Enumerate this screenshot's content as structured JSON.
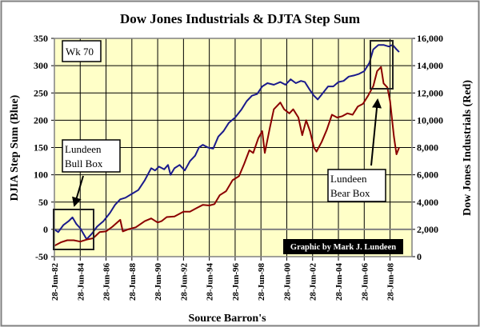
{
  "chart_data": {
    "type": "line",
    "title": "Dow Jones Industrials & DJTA Step Sum",
    "xlabel": "Source Barron's",
    "ylabel_left": "DJIA Step Sum (Blue)",
    "ylabel_right": "Dow Jones Industrials (Red)",
    "xlim": [
      1982.5,
      2010.2
    ],
    "ylim_left": [
      -50,
      350
    ],
    "ylim_right": [
      0,
      16000
    ],
    "grid": true,
    "x_ticks": [
      1982.5,
      1984.5,
      1986.5,
      1988.5,
      1990.5,
      1992.5,
      1994.5,
      1996.5,
      1998.5,
      2000.5,
      2002.5,
      2004.5,
      2006.5,
      2008.5
    ],
    "x_tick_labels": [
      "28-Jun-82",
      "28-Jun-84",
      "28-Jun-86",
      "28-Jun-88",
      "28-Jun-90",
      "28-Jun-92",
      "28-Jun-94",
      "28-Jun-96",
      "28-Jun-98",
      "28-Jun-00",
      "28-Jun-02",
      "28-Jun-04",
      "28-Jun-06",
      "28-Jun-08"
    ],
    "y_left_ticks": [
      -50,
      0,
      50,
      100,
      150,
      200,
      250,
      300,
      350
    ],
    "y_left_tick_labels": [
      "-50",
      "0",
      "50",
      "100",
      "150",
      "200",
      "250",
      "300",
      "350"
    ],
    "y_right_ticks": [
      0,
      2000,
      4000,
      6000,
      8000,
      10000,
      12000,
      14000,
      16000
    ],
    "y_right_tick_labels": [
      "0",
      "2,000",
      "4,000",
      "6,000",
      "8,000",
      "10,000",
      "12,000",
      "14,000",
      "16,000"
    ],
    "series": [
      {
        "name": "DJIA Step Sum",
        "axis": "left",
        "color": "#1a1a8c",
        "x": [
          1982.5,
          1982.8,
          1983.2,
          1983.6,
          1983.9,
          1984.2,
          1984.5,
          1984.8,
          1985.0,
          1985.4,
          1985.8,
          1986.3,
          1986.8,
          1987.2,
          1987.6,
          1988.0,
          1988.5,
          1989.0,
          1989.5,
          1990.0,
          1990.3,
          1990.6,
          1991.0,
          1991.3,
          1991.5,
          1991.8,
          1992.2,
          1992.6,
          1993.0,
          1993.4,
          1993.7,
          1994.0,
          1994.4,
          1994.8,
          1995.2,
          1995.6,
          1996.0,
          1996.5,
          1997.0,
          1997.4,
          1997.8,
          1998.2,
          1998.6,
          1999.0,
          1999.5,
          2000.0,
          2000.4,
          2000.8,
          2001.2,
          2001.6,
          2001.9,
          2002.3,
          2002.6,
          2002.9,
          2003.3,
          2003.7,
          2004.1,
          2004.5,
          2004.9,
          2005.3,
          2005.7,
          2006.1,
          2006.5,
          2006.9,
          2007.2,
          2007.6,
          2008.0,
          2008.4,
          2008.7,
          2009.0,
          2009.2
        ],
        "values": [
          0,
          -5,
          8,
          15,
          22,
          10,
          2,
          -10,
          -18,
          -8,
          5,
          15,
          30,
          45,
          55,
          58,
          65,
          72,
          90,
          112,
          108,
          115,
          110,
          118,
          100,
          112,
          118,
          108,
          125,
          135,
          150,
          155,
          150,
          148,
          170,
          180,
          195,
          205,
          220,
          235,
          245,
          248,
          262,
          268,
          265,
          270,
          265,
          275,
          268,
          272,
          270,
          255,
          245,
          238,
          250,
          262,
          262,
          270,
          272,
          280,
          282,
          285,
          290,
          305,
          330,
          338,
          338,
          335,
          338,
          330,
          325
        ]
      },
      {
        "name": "Dow Jones Industrials",
        "axis": "right",
        "color": "#8b0000",
        "x": [
          1982.5,
          1983.0,
          1983.5,
          1984.0,
          1984.5,
          1985.0,
          1985.5,
          1986.0,
          1986.5,
          1987.0,
          1987.6,
          1987.8,
          1988.2,
          1988.8,
          1989.5,
          1990.0,
          1990.5,
          1990.8,
          1991.2,
          1991.8,
          1992.5,
          1993.0,
          1993.5,
          1994.0,
          1994.5,
          1994.9,
          1995.3,
          1995.8,
          1996.3,
          1996.8,
          1997.2,
          1997.6,
          1997.9,
          1998.3,
          1998.6,
          1998.8,
          1999.2,
          1999.5,
          2000.0,
          2000.3,
          2000.7,
          2001.0,
          2001.4,
          2001.7,
          2002.0,
          2002.3,
          2002.6,
          2002.8,
          2003.2,
          2003.6,
          2004.0,
          2004.4,
          2004.8,
          2005.2,
          2005.6,
          2006.0,
          2006.4,
          2006.8,
          2007.2,
          2007.5,
          2007.8,
          2008.0,
          2008.3,
          2008.5,
          2008.8,
          2009.0,
          2009.2
        ],
        "values": [
          800,
          1050,
          1200,
          1200,
          1100,
          1250,
          1350,
          1800,
          1850,
          2200,
          2700,
          1850,
          2000,
          2150,
          2600,
          2800,
          2500,
          2600,
          2900,
          2950,
          3300,
          3300,
          3550,
          3800,
          3750,
          3850,
          4500,
          4800,
          5600,
          5900,
          6800,
          7800,
          7600,
          8700,
          9200,
          7600,
          9500,
          10800,
          11300,
          10800,
          10500,
          10800,
          10200,
          8900,
          10000,
          9200,
          8000,
          7700,
          8400,
          9300,
          10400,
          10200,
          10300,
          10500,
          10400,
          11000,
          11200,
          11800,
          12500,
          13600,
          13900,
          12700,
          12400,
          11400,
          8800,
          7500,
          8000
        ]
      }
    ],
    "annotations": {
      "week_label": "Wk 70",
      "bull_box_label": [
        "Lundeen",
        "Bull Box"
      ],
      "bear_box_label": [
        "Lundeen",
        "Bear Box"
      ],
      "credit": "Graphic by Mark J. Lundeen"
    },
    "colors": {
      "plot_background": "#ffffc8",
      "grid": "#000000",
      "frame": "#808080"
    }
  }
}
